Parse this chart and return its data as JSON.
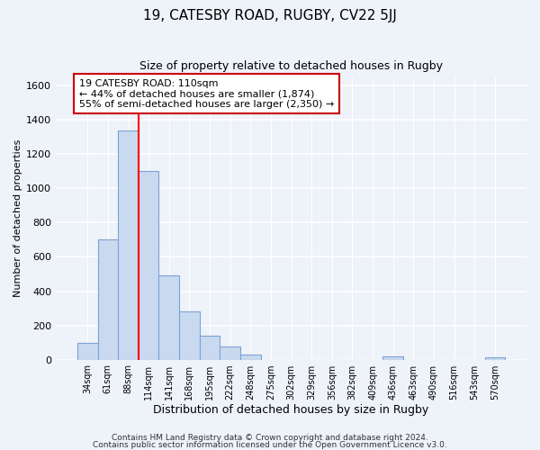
{
  "title": "19, CATESBY ROAD, RUGBY, CV22 5JJ",
  "subtitle": "Size of property relative to detached houses in Rugby",
  "xlabel": "Distribution of detached houses by size in Rugby",
  "ylabel": "Number of detached properties",
  "bar_labels": [
    "34sqm",
    "61sqm",
    "88sqm",
    "114sqm",
    "141sqm",
    "168sqm",
    "195sqm",
    "222sqm",
    "248sqm",
    "275sqm",
    "302sqm",
    "329sqm",
    "356sqm",
    "382sqm",
    "409sqm",
    "436sqm",
    "463sqm",
    "490sqm",
    "516sqm",
    "543sqm",
    "570sqm"
  ],
  "bar_values": [
    100,
    700,
    1340,
    1100,
    490,
    280,
    140,
    75,
    30,
    0,
    0,
    0,
    0,
    0,
    0,
    20,
    0,
    0,
    0,
    0,
    15
  ],
  "bar_color": "#c9d9f0",
  "bar_edge_color": "#7aa4d4",
  "vline_x": 2.5,
  "vline_color": "red",
  "annotation_text": "19 CATESBY ROAD: 110sqm\n← 44% of detached houses are smaller (1,874)\n55% of semi-detached houses are larger (2,350) →",
  "annotation_box_color": "white",
  "annotation_box_edge": "#cc0000",
  "ylim": [
    0,
    1650
  ],
  "yticks": [
    0,
    200,
    400,
    600,
    800,
    1000,
    1200,
    1400,
    1600
  ],
  "footer1": "Contains HM Land Registry data © Crown copyright and database right 2024.",
  "footer2": "Contains public sector information licensed under the Open Government Licence v3.0.",
  "bg_color": "#eef2f9",
  "grid_color": "white"
}
